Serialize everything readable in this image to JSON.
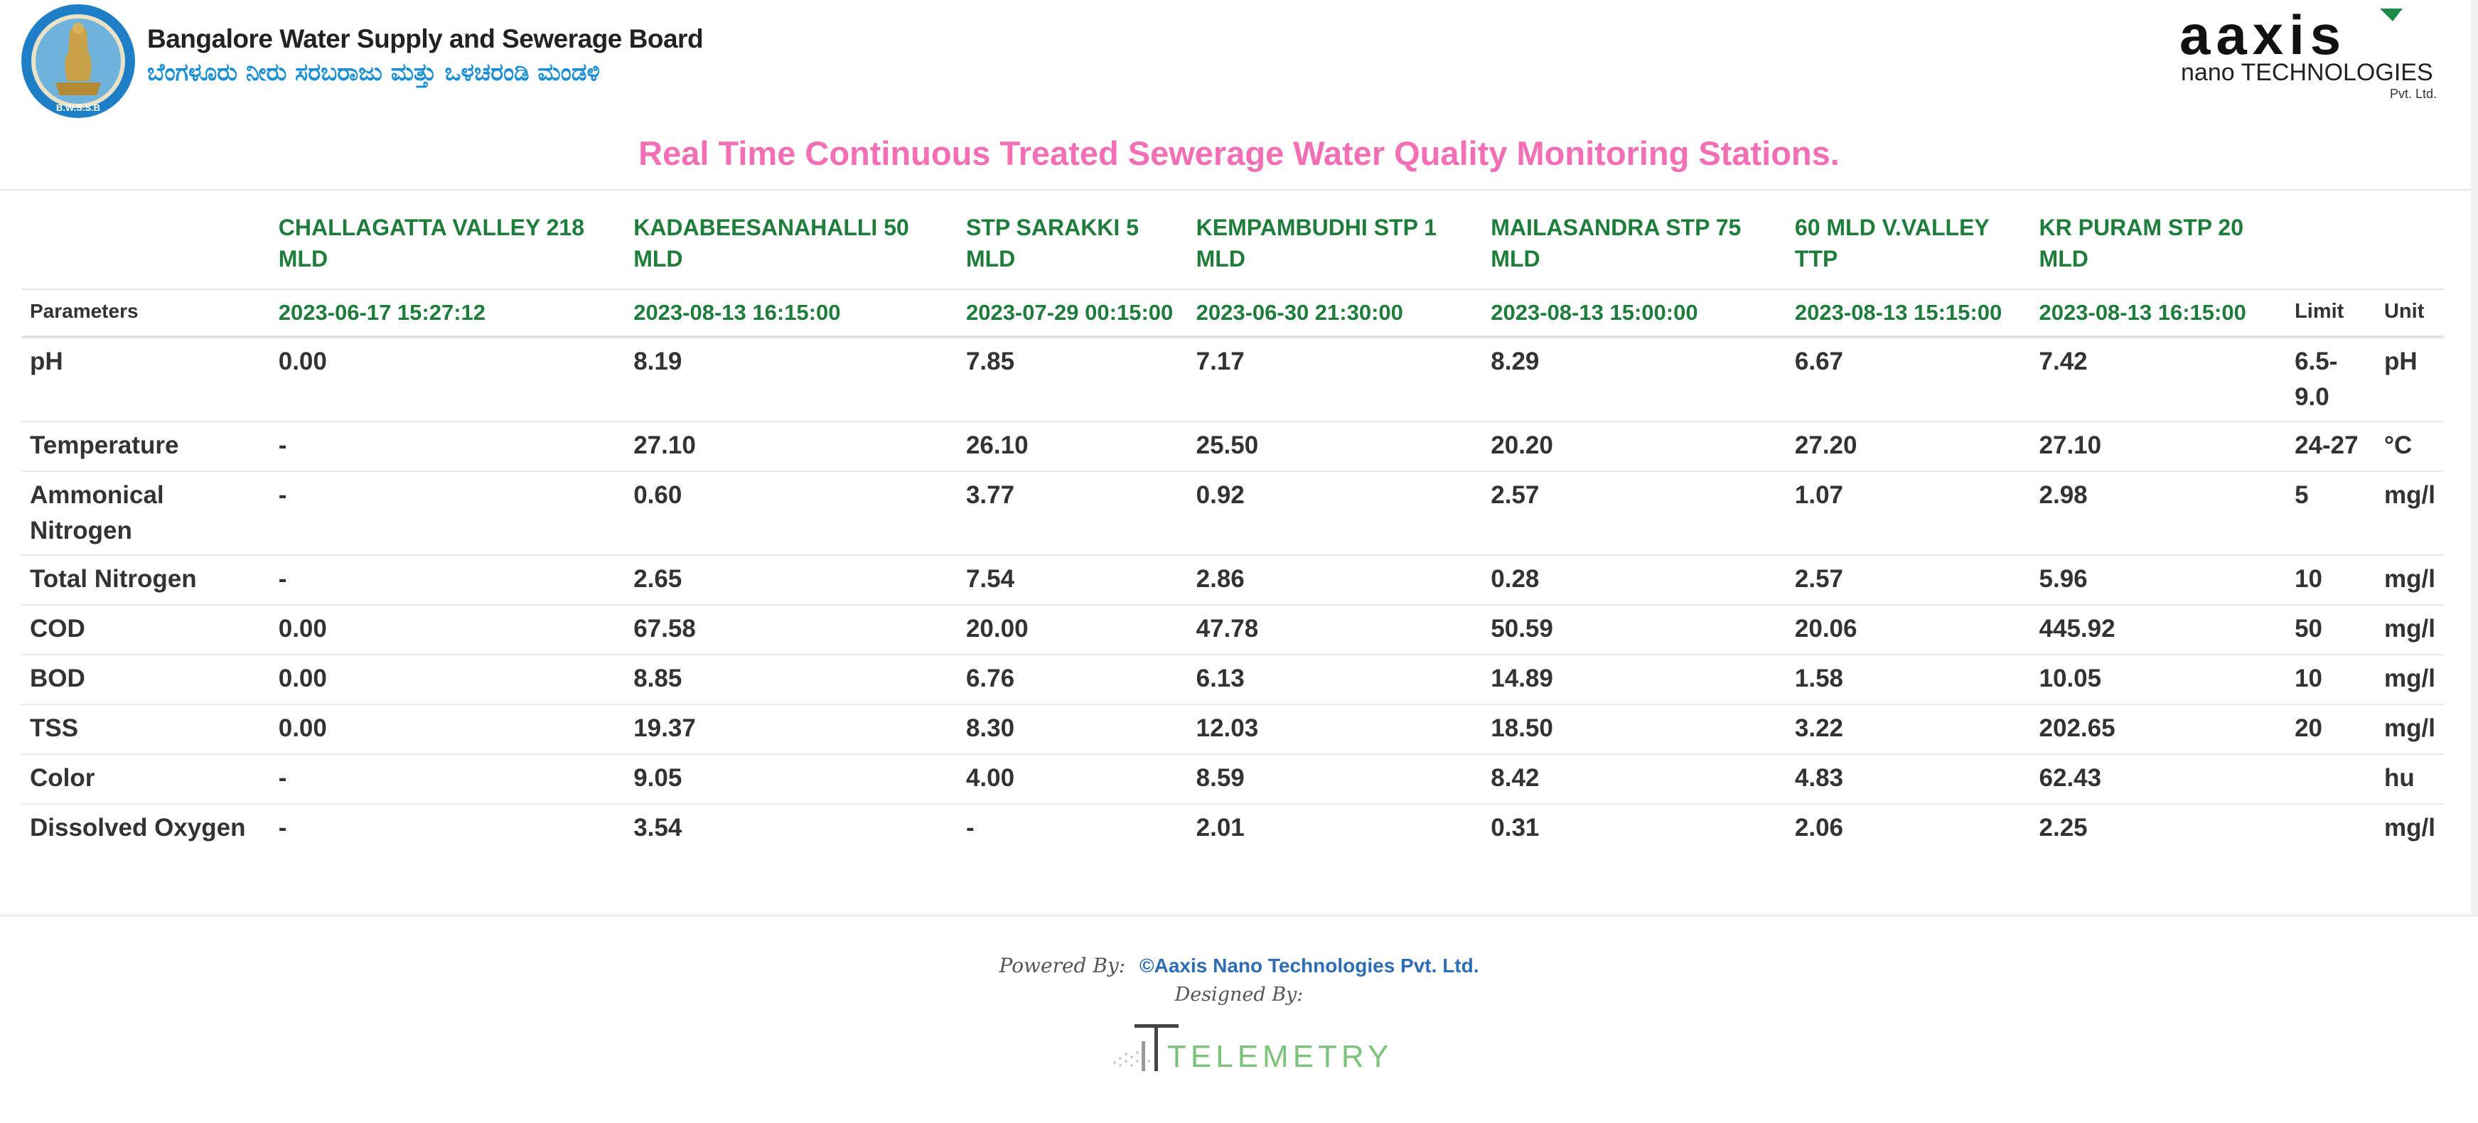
{
  "header": {
    "org_name": "Bangalore Water Supply and Sewerage Board",
    "org_name_kannada": "ಬೆಂಗಳೂರು ನೀರು ಸರಬರಾಜು ಮತ್ತು ಒಳಚರಂಡಿ ಮಂಡಳಿ",
    "logo_left_text": "B.W.S.S.B",
    "logo_right_brand": "aaxis",
    "logo_right_sub": "nano TECHNOLOGIES",
    "logo_right_tag": "Pvt. Ltd.",
    "page_title": "Real Time Continuous Treated Sewerage Water Quality Monitoring Stations."
  },
  "table": {
    "parameters_label": "Parameters",
    "limit_label": "Limit",
    "unit_label": "Unit",
    "stations": [
      {
        "name": "CHALLAGATTA VALLEY 218 MLD",
        "timestamp": "2023-06-17 15:27:12"
      },
      {
        "name": "KADABEESANAHALLI 50 MLD",
        "timestamp": "2023-08-13 16:15:00"
      },
      {
        "name": "STP SARAKKI 5 MLD",
        "timestamp": "2023-07-29 00:15:00"
      },
      {
        "name": "KEMPAMBUDHI STP 1 MLD",
        "timestamp": "2023-06-30 21:30:00"
      },
      {
        "name": "MAILASANDRA STP 75 MLD",
        "timestamp": "2023-08-13 15:00:00"
      },
      {
        "name": "60 MLD V.VALLEY TTP",
        "timestamp": "2023-08-13 15:15:00"
      },
      {
        "name": "KR PURAM STP 20 MLD",
        "timestamp": "2023-08-13 16:15:00"
      }
    ],
    "rows": [
      {
        "param": "pH",
        "values": [
          "0.00",
          "8.19",
          "7.85",
          "7.17",
          "8.29",
          "6.67",
          "7.42"
        ],
        "limit": "6.5-9.0",
        "unit": "pH"
      },
      {
        "param": "Temperature",
        "values": [
          "-",
          "27.10",
          "26.10",
          "25.50",
          "20.20",
          "27.20",
          "27.10"
        ],
        "limit": "24-27",
        "unit": "°C"
      },
      {
        "param": "Ammonical Nitrogen",
        "values": [
          "-",
          "0.60",
          "3.77",
          "0.92",
          "2.57",
          "1.07",
          "2.98"
        ],
        "limit": "5",
        "unit": "mg/l"
      },
      {
        "param": "Total Nitrogen",
        "values": [
          "-",
          "2.65",
          "7.54",
          "2.86",
          "0.28",
          "2.57",
          "5.96"
        ],
        "limit": "10",
        "unit": "mg/l"
      },
      {
        "param": "COD",
        "values": [
          "0.00",
          "67.58",
          "20.00",
          "47.78",
          "50.59",
          "20.06",
          "445.92"
        ],
        "limit": "50",
        "unit": "mg/l"
      },
      {
        "param": "BOD",
        "values": [
          "0.00",
          "8.85",
          "6.76",
          "6.13",
          "14.89",
          "1.58",
          "10.05"
        ],
        "limit": "10",
        "unit": "mg/l"
      },
      {
        "param": "TSS",
        "values": [
          "0.00",
          "19.37",
          "8.30",
          "12.03",
          "18.50",
          "3.22",
          "202.65"
        ],
        "limit": "20",
        "unit": "mg/l"
      },
      {
        "param": "Color",
        "values": [
          "-",
          "9.05",
          "4.00",
          "8.59",
          "8.42",
          "4.83",
          "62.43"
        ],
        "limit": "",
        "unit": "hu"
      },
      {
        "param": "Dissolved Oxygen",
        "values": [
          "-",
          "3.54",
          "-",
          "2.01",
          "0.31",
          "2.06",
          "2.25"
        ],
        "limit": "",
        "unit": "mg/l"
      }
    ]
  },
  "footer": {
    "powered_by_label": "Powered By:",
    "powered_by_link": "©Aaxis Nano Technologies Pvt. Ltd.",
    "designed_by_label": "Designed By:",
    "designer_logo_text": "TELEMETRY"
  },
  "colors": {
    "title_pink": "#f26fb5",
    "station_green": "#1e7d3a",
    "link_blue": "#2d6db7",
    "kannada_blue": "#1a8fd6"
  }
}
